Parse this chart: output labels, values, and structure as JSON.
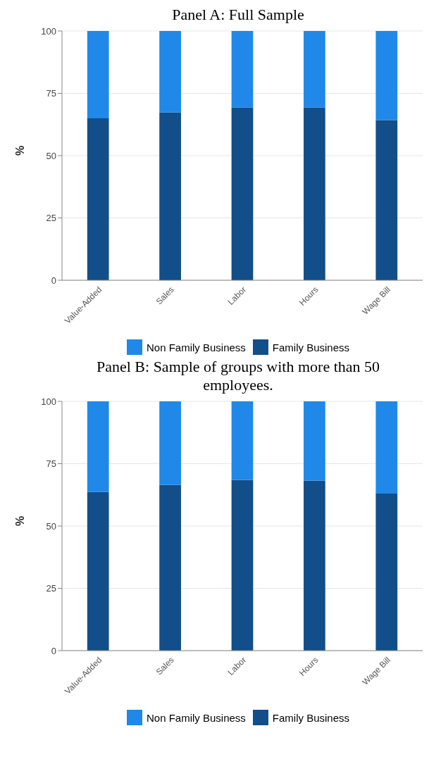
{
  "chart_data": [
    {
      "type": "bar",
      "title": "Panel A: Full Sample",
      "ylabel": "%",
      "categories": [
        "Value-Added",
        "Sales",
        "Labor",
        "Hours",
        "Wage Bill"
      ],
      "stacked": true,
      "ylim": [
        0,
        100
      ],
      "yticks": [
        0,
        25,
        50,
        75,
        100
      ],
      "grid": "y",
      "legend": "bottom",
      "series": [
        {
          "name": "Family Business",
          "color": "#124e89",
          "values": [
            65,
            67.3,
            69.3,
            69.3,
            64.3
          ]
        },
        {
          "name": "Non Family Business",
          "color": "#1f88e9",
          "values": [
            35,
            32.7,
            30.7,
            30.7,
            35.7
          ]
        }
      ]
    },
    {
      "type": "bar",
      "title": "Panel B: Sample of groups with more than 50 employees.",
      "ylabel": "%",
      "categories": [
        "Value-Added",
        "Sales",
        "Labor",
        "Hours",
        "Wage Bill"
      ],
      "stacked": true,
      "ylim": [
        0,
        100
      ],
      "yticks": [
        0,
        25,
        50,
        75,
        100
      ],
      "grid": "y",
      "legend": "bottom",
      "series": [
        {
          "name": "Family Business",
          "color": "#124e89",
          "values": [
            63.6,
            66.5,
            68.5,
            68.2,
            63
          ]
        },
        {
          "name": "Non Family Business",
          "color": "#1f88e9",
          "values": [
            36.4,
            33.5,
            31.5,
            31.8,
            37
          ]
        }
      ]
    }
  ]
}
